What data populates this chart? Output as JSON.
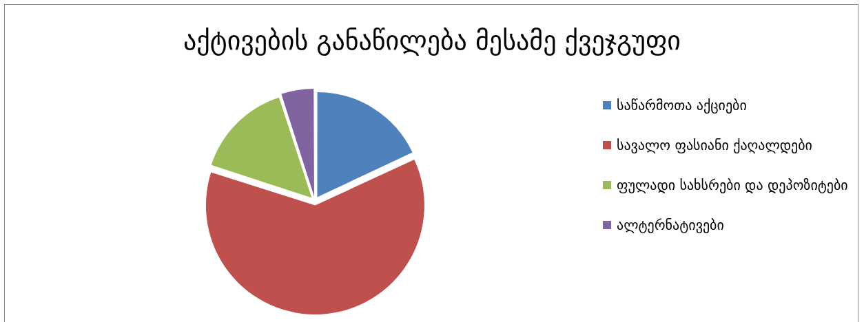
{
  "chart_data": {
    "type": "pie",
    "title": "აქტივების განაწილება მესამე ქვეჯგუფი",
    "categories": [
      "საწარმოთა აქციები",
      "სავალო ფასიანი ქაღალდები",
      "ფულადი სახსრები და დეპოზიტები",
      "ალტერნატივები"
    ],
    "values": [
      18,
      62,
      15,
      5
    ],
    "colors": [
      "#4f81bd",
      "#c0504d",
      "#9bbb59",
      "#8064a2"
    ],
    "legend": "right"
  }
}
